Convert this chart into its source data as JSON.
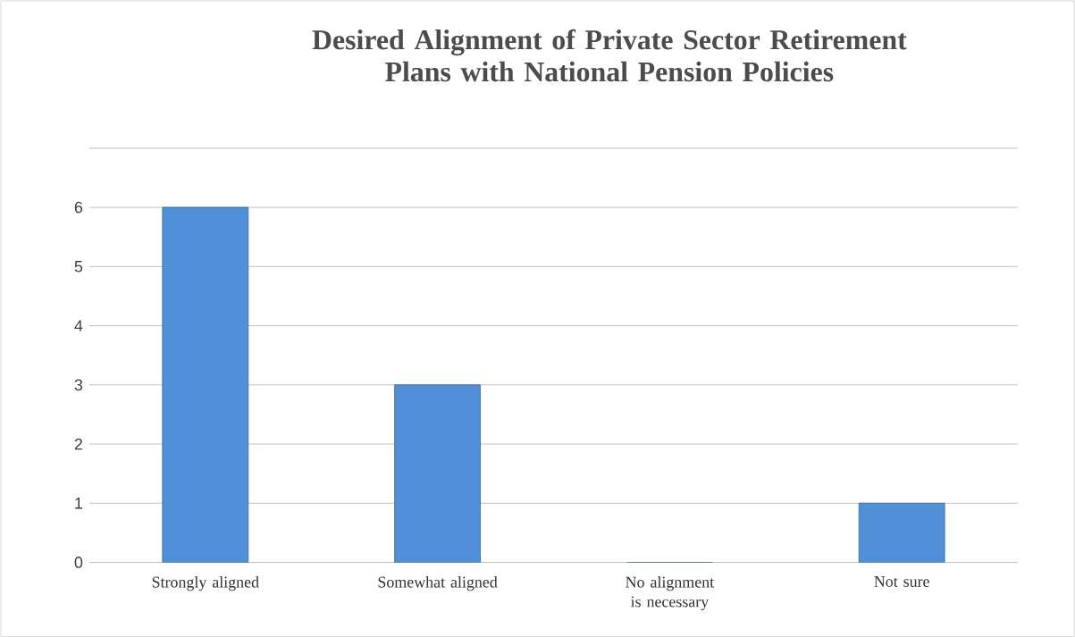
{
  "chart_data": {
    "type": "bar",
    "title": "Desired Alignment of Private Sector Retirement Plans with National Pension Policies",
    "categories": [
      "Strongly aligned",
      "Somewhat aligned",
      "No alignment is necessary",
      "Not sure"
    ],
    "values": [
      6,
      3,
      0,
      1
    ],
    "color": "#4f90d6",
    "ylim": [
      0,
      7
    ],
    "yticks": [
      0,
      1,
      2,
      3,
      4,
      5,
      6,
      {
        "value": 7,
        "label": null
      }
    ],
    "grid": "y"
  }
}
